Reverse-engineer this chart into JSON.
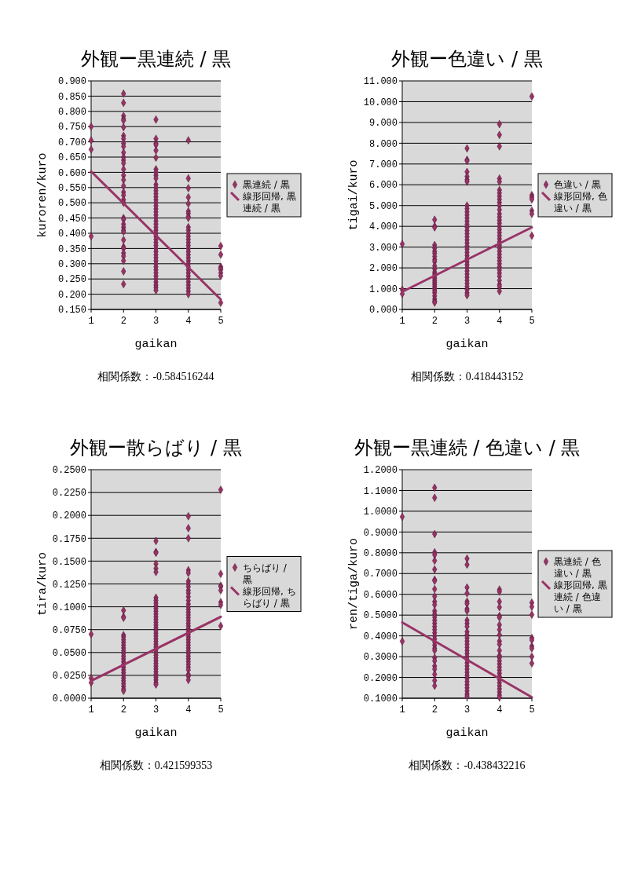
{
  "chart_data": [
    {
      "type": "scatter",
      "title": "外観ー黒連続 / 黒",
      "xlabel": "gaikan",
      "ylabel": "kuroren/kuro",
      "xlim": [
        1,
        5
      ],
      "xticks": [
        1,
        2,
        3,
        4,
        5
      ],
      "ylim": [
        0.15,
        0.9
      ],
      "yticks": [
        {
          "value": 0.15,
          "label": "0.150"
        },
        {
          "value": 0.2,
          "label": "0.200"
        },
        {
          "value": 0.25,
          "label": "0.250"
        },
        {
          "value": 0.3,
          "label": "0.300"
        },
        {
          "value": 0.35,
          "label": "0.350"
        },
        {
          "value": 0.4,
          "label": "0.400"
        },
        {
          "value": 0.45,
          "label": "0.450"
        },
        {
          "value": 0.5,
          "label": "0.500"
        },
        {
          "value": 0.55,
          "label": "0.550"
        },
        {
          "value": 0.6,
          "label": "0.600"
        },
        {
          "value": 0.65,
          "label": "0.650"
        },
        {
          "value": 0.7,
          "label": "0.700"
        },
        {
          "value": 0.75,
          "label": "0.750"
        },
        {
          "value": 0.8,
          "label": "0.800"
        },
        {
          "value": 0.85,
          "label": "0.850"
        },
        {
          "value": 0.9,
          "label": "0.900"
        }
      ],
      "grid": "y",
      "legend": "right",
      "annotations": [
        "相関係数：-0.584516244"
      ],
      "series": [
        {
          "name": "黒連続 / 黒",
          "type": "scatter",
          "marker": "diamond",
          "color": "#993366",
          "x": [
            1,
            1,
            1,
            1,
            2,
            2,
            2,
            2,
            2,
            2,
            2,
            2,
            2,
            2,
            2,
            2,
            2,
            2,
            2,
            2,
            2,
            2,
            2,
            2,
            2,
            2,
            2,
            2,
            2,
            2,
            2,
            2,
            2,
            2,
            2,
            2,
            2,
            2,
            2,
            2,
            3,
            3,
            3,
            3,
            3,
            3,
            3,
            3,
            3,
            3,
            3,
            3,
            3,
            3,
            3,
            3,
            3,
            3,
            3,
            3,
            3,
            3,
            3,
            3,
            3,
            3,
            3,
            3,
            3,
            3,
            3,
            3,
            3,
            3,
            3,
            3,
            3,
            3,
            3,
            3,
            3,
            3,
            3,
            3,
            3,
            3,
            4,
            4,
            4,
            4,
            4,
            4,
            4,
            4,
            4,
            4,
            4,
            4,
            4,
            4,
            4,
            4,
            4,
            4,
            4,
            4,
            4,
            4,
            4,
            4,
            4,
            4,
            4,
            4,
            4,
            4,
            4,
            4,
            5,
            5,
            5,
            5,
            5,
            5,
            5,
            5
          ],
          "values": [
            0.75,
            0.705,
            0.675,
            0.39,
            0.858,
            0.828,
            0.785,
            0.775,
            0.77,
            0.748,
            0.72,
            0.71,
            0.695,
            0.685,
            0.665,
            0.65,
            0.64,
            0.63,
            0.61,
            0.59,
            0.575,
            0.555,
            0.535,
            0.525,
            0.51,
            0.5,
            0.45,
            0.445,
            0.43,
            0.42,
            0.41,
            0.405,
            0.378,
            0.355,
            0.35,
            0.335,
            0.325,
            0.31,
            0.275,
            0.233,
            0.773,
            0.71,
            0.695,
            0.69,
            0.672,
            0.648,
            0.61,
            0.6,
            0.59,
            0.58,
            0.56,
            0.55,
            0.54,
            0.53,
            0.52,
            0.51,
            0.5,
            0.49,
            0.48,
            0.47,
            0.46,
            0.45,
            0.44,
            0.43,
            0.42,
            0.41,
            0.4,
            0.39,
            0.38,
            0.37,
            0.36,
            0.35,
            0.34,
            0.33,
            0.32,
            0.31,
            0.3,
            0.29,
            0.28,
            0.27,
            0.26,
            0.25,
            0.24,
            0.23,
            0.222,
            0.213,
            0.705,
            0.58,
            0.548,
            0.518,
            0.497,
            0.472,
            0.465,
            0.455,
            0.45,
            0.42,
            0.41,
            0.4,
            0.39,
            0.38,
            0.37,
            0.36,
            0.35,
            0.34,
            0.33,
            0.32,
            0.31,
            0.3,
            0.29,
            0.28,
            0.27,
            0.26,
            0.25,
            0.24,
            0.23,
            0.22,
            0.21,
            0.2,
            0.358,
            0.33,
            0.29,
            0.285,
            0.28,
            0.27,
            0.26,
            0.172
          ]
        },
        {
          "name": "線形回帰, 黒連続 / 黒",
          "type": "line",
          "marker": "none",
          "color": "#993366",
          "x": [
            1,
            5
          ],
          "values": [
            0.603,
            0.183
          ]
        }
      ]
    },
    {
      "type": "scatter",
      "title": "外観ー色違い / 黒",
      "xlabel": "gaikan",
      "ylabel": "tigai/kuro",
      "xlim": [
        1,
        5
      ],
      "xticks": [
        1,
        2,
        3,
        4,
        5
      ],
      "ylim": [
        0,
        11
      ],
      "yticks": [
        {
          "value": 0,
          "label": "0.000"
        },
        {
          "value": 1,
          "label": "1.000"
        },
        {
          "value": 2,
          "label": "2.000"
        },
        {
          "value": 3,
          "label": "3.000"
        },
        {
          "value": 4,
          "label": "4.000"
        },
        {
          "value": 5,
          "label": "5.000"
        },
        {
          "value": 6,
          "label": "6.000"
        },
        {
          "value": 7,
          "label": "7.000"
        },
        {
          "value": 8,
          "label": "8.000"
        },
        {
          "value": 9,
          "label": "9.000"
        },
        {
          "value": 10,
          "label": "10.000"
        },
        {
          "value": 11,
          "label": "11.000"
        }
      ],
      "grid": "y",
      "legend": "right",
      "annotations": [
        "相関係数：0.418443152"
      ],
      "series": [
        {
          "name": "色違い / 黒",
          "type": "scatter",
          "marker": "diamond",
          "color": "#993366",
          "x": [
            1,
            1,
            1,
            2,
            2,
            2,
            2,
            2,
            2,
            2,
            2,
            2,
            2,
            2,
            2,
            2,
            2,
            2,
            2,
            2,
            2,
            2,
            2,
            2,
            2,
            2,
            2,
            2,
            2,
            2,
            3,
            3,
            3,
            3,
            3,
            3,
            3,
            3,
            3,
            3,
            3,
            3,
            3,
            3,
            3,
            3,
            3,
            3,
            3,
            3,
            3,
            3,
            3,
            3,
            3,
            3,
            3,
            3,
            3,
            3,
            3,
            3,
            3,
            3,
            3,
            3,
            3,
            4,
            4,
            4,
            4,
            4,
            4,
            4,
            4,
            4,
            4,
            4,
            4,
            4,
            4,
            4,
            4,
            4,
            4,
            4,
            4,
            4,
            4,
            4,
            4,
            4,
            4,
            4,
            4,
            4,
            4,
            4,
            4,
            4,
            4,
            4,
            4,
            4,
            5,
            5,
            5,
            5,
            5,
            5,
            5
          ],
          "values": [
            3.15,
            0.95,
            0.75,
            4.32,
            4.0,
            3.95,
            3.1,
            2.95,
            2.8,
            2.7,
            2.55,
            2.4,
            2.3,
            2.1,
            1.95,
            1.8,
            1.7,
            1.6,
            1.5,
            1.4,
            1.3,
            1.2,
            1.1,
            1.0,
            0.9,
            0.8,
            0.65,
            0.5,
            0.4,
            0.33,
            7.75,
            7.2,
            7.15,
            6.62,
            6.4,
            6.25,
            6.15,
            5.0,
            4.85,
            4.7,
            4.55,
            4.4,
            4.25,
            4.1,
            3.95,
            3.8,
            3.65,
            3.5,
            3.35,
            3.2,
            3.05,
            2.9,
            2.75,
            2.6,
            2.45,
            2.3,
            2.15,
            2.0,
            1.85,
            1.7,
            1.55,
            1.4,
            1.25,
            1.1,
            0.95,
            0.8,
            0.68,
            8.92,
            8.4,
            7.85,
            6.3,
            6.15,
            5.75,
            5.6,
            5.45,
            5.3,
            5.15,
            5.0,
            4.8,
            4.6,
            4.45,
            4.3,
            4.15,
            4.0,
            3.85,
            3.7,
            3.55,
            3.4,
            3.25,
            3.1,
            2.95,
            2.8,
            2.65,
            2.5,
            2.35,
            2.2,
            2.05,
            1.9,
            1.75,
            1.6,
            1.4,
            1.2,
            1.1,
            0.88,
            10.25,
            5.5,
            5.4,
            5.3,
            4.75,
            4.6,
            3.55
          ]
        },
        {
          "name": "線形回帰, 色違い / 黒",
          "type": "line",
          "marker": "none",
          "color": "#993366",
          "x": [
            1,
            5
          ],
          "values": [
            0.85,
            3.95
          ]
        }
      ]
    },
    {
      "type": "scatter",
      "title": "外観ー散らばり / 黒",
      "xlabel": "gaikan",
      "ylabel": "tira/kuro",
      "xlim": [
        1,
        5
      ],
      "xticks": [
        1,
        2,
        3,
        4,
        5
      ],
      "ylim": [
        0,
        0.25
      ],
      "yticks": [
        {
          "value": 0,
          "label": "0.0000"
        },
        {
          "value": 0.025,
          "label": "0.0250"
        },
        {
          "value": 0.05,
          "label": "0.0500"
        },
        {
          "value": 0.075,
          "label": "0.0750"
        },
        {
          "value": 0.1,
          "label": "0.1000"
        },
        {
          "value": 0.125,
          "label": "0.1250"
        },
        {
          "value": 0.15,
          "label": "0.1500"
        },
        {
          "value": 0.175,
          "label": "0.1750"
        },
        {
          "value": 0.2,
          "label": "0.2000"
        },
        {
          "value": 0.225,
          "label": "0.2250"
        },
        {
          "value": 0.25,
          "label": "0.2500"
        }
      ],
      "grid": "y",
      "legend": "right",
      "annotations": [
        "相関係数：0.421599353"
      ],
      "series": [
        {
          "name": "ちらばり / 黒",
          "type": "scatter",
          "marker": "diamond",
          "color": "#993366",
          "x": [
            1,
            1,
            1,
            2,
            2,
            2,
            2,
            2,
            2,
            2,
            2,
            2,
            2,
            2,
            2,
            2,
            2,
            2,
            2,
            2,
            2,
            2,
            2,
            2,
            2,
            2,
            2,
            2,
            3,
            3,
            3,
            3,
            3,
            3,
            3,
            3,
            3,
            3,
            3,
            3,
            3,
            3,
            3,
            3,
            3,
            3,
            3,
            3,
            3,
            3,
            3,
            3,
            3,
            3,
            3,
            3,
            3,
            3,
            3,
            3,
            3,
            3,
            3,
            3,
            3,
            3,
            3,
            4,
            4,
            4,
            4,
            4,
            4,
            4,
            4,
            4,
            4,
            4,
            4,
            4,
            4,
            4,
            4,
            4,
            4,
            4,
            4,
            4,
            4,
            4,
            4,
            4,
            4,
            4,
            4,
            4,
            4,
            4,
            4,
            4,
            4,
            4,
            4,
            4,
            4,
            4,
            4,
            5,
            5,
            5,
            5,
            5,
            5,
            5,
            5
          ],
          "values": [
            0.07,
            0.022,
            0.017,
            0.096,
            0.089,
            0.088,
            0.069,
            0.067,
            0.064,
            0.061,
            0.058,
            0.055,
            0.052,
            0.049,
            0.046,
            0.043,
            0.04,
            0.037,
            0.034,
            0.031,
            0.028,
            0.025,
            0.022,
            0.019,
            0.016,
            0.013,
            0.01,
            0.008,
            0.172,
            0.16,
            0.159,
            0.147,
            0.142,
            0.138,
            0.11,
            0.107,
            0.104,
            0.101,
            0.098,
            0.095,
            0.092,
            0.089,
            0.086,
            0.083,
            0.08,
            0.077,
            0.074,
            0.071,
            0.068,
            0.065,
            0.062,
            0.059,
            0.056,
            0.053,
            0.05,
            0.047,
            0.044,
            0.041,
            0.038,
            0.035,
            0.032,
            0.029,
            0.026,
            0.023,
            0.02,
            0.017,
            0.015,
            0.199,
            0.186,
            0.175,
            0.14,
            0.137,
            0.128,
            0.125,
            0.122,
            0.118,
            0.115,
            0.111,
            0.107,
            0.103,
            0.1,
            0.097,
            0.094,
            0.091,
            0.088,
            0.085,
            0.082,
            0.079,
            0.076,
            0.073,
            0.07,
            0.067,
            0.064,
            0.061,
            0.058,
            0.055,
            0.052,
            0.049,
            0.046,
            0.043,
            0.04,
            0.037,
            0.034,
            0.031,
            0.026,
            0.024,
            0.02,
            0.228,
            0.136,
            0.123,
            0.122,
            0.118,
            0.105,
            0.102,
            0.079
          ]
        },
        {
          "name": "線形回帰, ちらばり / 黒",
          "type": "line",
          "marker": "none",
          "color": "#993366",
          "x": [
            1,
            5
          ],
          "values": [
            0.019,
            0.089
          ]
        }
      ]
    },
    {
      "type": "scatter",
      "title": "外観ー黒連続 / 色違い / 黒",
      "xlabel": "gaikan",
      "ylabel": "ren/tiga/kuro",
      "xlim": [
        1,
        5
      ],
      "xticks": [
        1,
        2,
        3,
        4,
        5
      ],
      "ylim": [
        0.1,
        1.2
      ],
      "yticks": [
        {
          "value": 0.1,
          "label": "0.1000"
        },
        {
          "value": 0.2,
          "label": "0.2000"
        },
        {
          "value": 0.3,
          "label": "0.3000"
        },
        {
          "value": 0.4,
          "label": "0.4000"
        },
        {
          "value": 0.5,
          "label": "0.5000"
        },
        {
          "value": 0.6,
          "label": "0.6000"
        },
        {
          "value": 0.7,
          "label": "0.7000"
        },
        {
          "value": 0.8,
          "label": "0.8000"
        },
        {
          "value": 0.9,
          "label": "0.9000"
        },
        {
          "value": 1.0,
          "label": "1.0000"
        },
        {
          "value": 1.1,
          "label": "1.1000"
        },
        {
          "value": 1.2,
          "label": "1.2000"
        }
      ],
      "grid": "y",
      "legend": "right",
      "annotations": [
        "相関係数：-0.438432216"
      ],
      "series": [
        {
          "name": "黒連続 / 色違い / 黒",
          "type": "scatter",
          "marker": "diamond",
          "color": "#993366",
          "x": [
            1,
            1,
            2,
            2,
            2,
            2,
            2,
            2,
            2,
            2,
            2,
            2,
            2,
            2,
            2,
            2,
            2,
            2,
            2,
            2,
            2,
            2,
            2,
            2,
            2,
            2,
            2,
            2,
            2,
            2,
            2,
            2,
            2,
            2,
            2,
            2,
            3,
            3,
            3,
            3,
            3,
            3,
            3,
            3,
            3,
            3,
            3,
            3,
            3,
            3,
            3,
            3,
            3,
            3,
            3,
            3,
            3,
            3,
            3,
            3,
            3,
            3,
            3,
            3,
            3,
            3,
            3,
            3,
            3,
            4,
            4,
            4,
            4,
            4,
            4,
            4,
            4,
            4,
            4,
            4,
            4,
            4,
            4,
            4,
            4,
            4,
            4,
            4,
            4,
            4,
            4,
            4,
            4,
            4,
            4,
            4,
            5,
            5,
            5,
            5,
            5,
            5,
            5,
            5,
            5
          ],
          "values": [
            0.973,
            0.374,
            1.113,
            1.065,
            0.89,
            0.802,
            0.79,
            0.762,
            0.72,
            0.67,
            0.665,
            0.625,
            0.59,
            0.565,
            0.55,
            0.52,
            0.505,
            0.49,
            0.475,
            0.46,
            0.445,
            0.43,
            0.415,
            0.4,
            0.385,
            0.37,
            0.355,
            0.34,
            0.33,
            0.295,
            0.28,
            0.255,
            0.24,
            0.215,
            0.185,
            0.16,
            0.772,
            0.743,
            0.633,
            0.605,
            0.565,
            0.555,
            0.53,
            0.52,
            0.475,
            0.46,
            0.445,
            0.42,
            0.405,
            0.39,
            0.375,
            0.36,
            0.345,
            0.33,
            0.315,
            0.3,
            0.285,
            0.27,
            0.255,
            0.24,
            0.225,
            0.21,
            0.195,
            0.18,
            0.165,
            0.15,
            0.135,
            0.12,
            0.11,
            0.623,
            0.613,
            0.565,
            0.538,
            0.496,
            0.488,
            0.453,
            0.43,
            0.405,
            0.375,
            0.36,
            0.33,
            0.305,
            0.295,
            0.28,
            0.265,
            0.25,
            0.235,
            0.22,
            0.205,
            0.19,
            0.175,
            0.16,
            0.145,
            0.13,
            0.115,
            0.105,
            0.56,
            0.54,
            0.502,
            0.39,
            0.38,
            0.35,
            0.34,
            0.3,
            0.268
          ]
        },
        {
          "name": "線形回帰, 黒連続 / 色違い / 黒",
          "type": "line",
          "marker": "none",
          "color": "#993366",
          "x": [
            1,
            5
          ],
          "values": [
            0.465,
            0.105
          ]
        }
      ]
    }
  ]
}
